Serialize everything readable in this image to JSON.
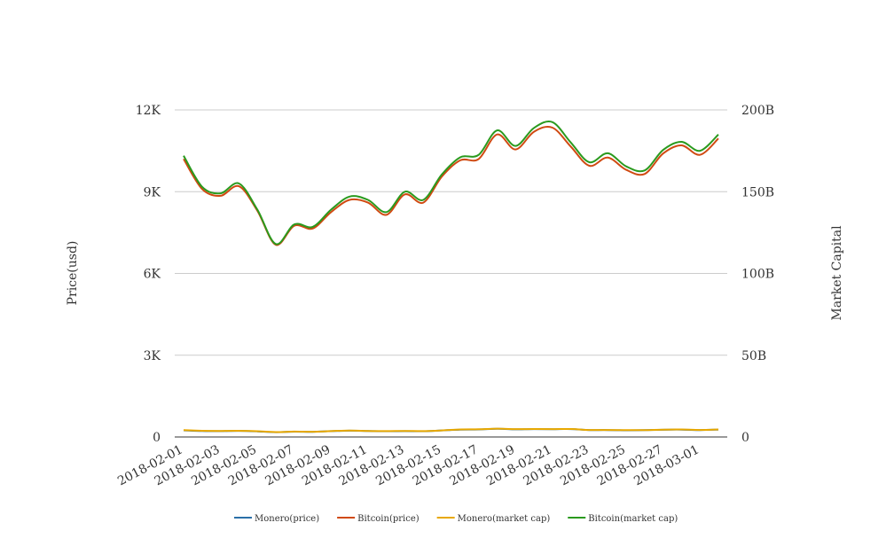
{
  "chart_data": {
    "type": "line",
    "x": [
      "2018-02-01",
      "2018-02-02",
      "2018-02-03",
      "2018-02-04",
      "2018-02-05",
      "2018-02-06",
      "2018-02-07",
      "2018-02-08",
      "2018-02-09",
      "2018-02-10",
      "2018-02-11",
      "2018-02-12",
      "2018-02-13",
      "2018-02-14",
      "2018-02-15",
      "2018-02-16",
      "2018-02-17",
      "2018-02-18",
      "2018-02-19",
      "2018-02-20",
      "2018-02-21",
      "2018-02-22",
      "2018-02-23",
      "2018-02-24",
      "2018-02-25",
      "2018-02-26",
      "2018-02-27",
      "2018-02-28",
      "2018-03-01",
      "2018-03-02"
    ],
    "x_tick_labels": [
      "2018-02-01",
      "2018-02-03",
      "2018-02-05",
      "2018-02-07",
      "2018-02-09",
      "2018-02-11",
      "2018-02-13",
      "2018-02-15",
      "2018-02-17",
      "2018-02-19",
      "2018-02-21",
      "2018-02-23",
      "2018-02-25",
      "2018-02-27",
      "2018-03-01"
    ],
    "y_left": {
      "label": "Price(usd)",
      "range": [
        0,
        12000
      ],
      "ticks": [
        0,
        3000,
        6000,
        9000,
        12000
      ],
      "tick_labels": [
        "0",
        "3K",
        "6K",
        "9K",
        "12K"
      ]
    },
    "y_right": {
      "label": "Market Capital",
      "range": [
        0,
        200000000000
      ],
      "ticks": [
        0,
        50000000000,
        100000000000,
        150000000000,
        200000000000
      ],
      "tick_labels": [
        "0",
        "50B",
        "100B",
        "150B",
        "200B"
      ]
    },
    "grid": true,
    "legend_position": "bottom-center",
    "series": [
      {
        "name": "Monero(price)",
        "axis": "left",
        "color": "#2a6fa8",
        "values": [
          245,
          220,
          215,
          225,
          205,
          175,
          195,
          190,
          215,
          230,
          220,
          210,
          215,
          210,
          240,
          270,
          275,
          300,
          280,
          290,
          285,
          290,
          255,
          255,
          245,
          250,
          265,
          270,
          255,
          270
        ]
      },
      {
        "name": "Bitcoin(price)",
        "axis": "left",
        "color": "#d04a12",
        "values": [
          10200,
          9100,
          8850,
          9200,
          8300,
          7050,
          7750,
          7650,
          8250,
          8700,
          8600,
          8150,
          8900,
          8600,
          9550,
          10150,
          10200,
          11100,
          10550,
          11200,
          11350,
          10650,
          9950,
          10250,
          9800,
          9650,
          10400,
          10700,
          10350,
          10950
        ]
      },
      {
        "name": "Monero(market cap)",
        "axis": "right",
        "color": "#e8a800",
        "values": [
          4200000000,
          3800000000,
          3700000000,
          3800000000,
          3500000000,
          3000000000,
          3300000000,
          3200000000,
          3600000000,
          3900000000,
          3700000000,
          3600000000,
          3700000000,
          3600000000,
          4000000000,
          4600000000,
          4700000000,
          5100000000,
          4800000000,
          4900000000,
          4800000000,
          4900000000,
          4300000000,
          4300000000,
          4200000000,
          4200000000,
          4500000000,
          4600000000,
          4300000000,
          4600000000
        ]
      },
      {
        "name": "Bitcoin(market cap)",
        "axis": "right",
        "color": "#2a9a1e",
        "values": [
          172000000000,
          153000000000,
          149000000000,
          155000000000,
          139000000000,
          118000000000,
          130000000000,
          128500000000,
          139000000000,
          147000000000,
          145000000000,
          137500000000,
          150000000000,
          145000000000,
          160500000000,
          171000000000,
          172500000000,
          187500000000,
          178000000000,
          189000000000,
          192500000000,
          180000000000,
          168000000000,
          173500000000,
          165500000000,
          163000000000,
          175500000000,
          180500000000,
          175000000000,
          185000000000
        ]
      }
    ]
  }
}
